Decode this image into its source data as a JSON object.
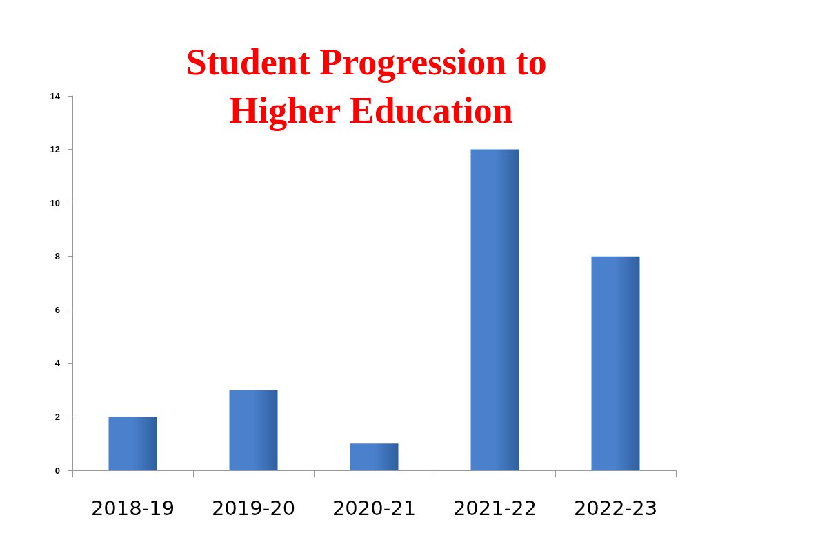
{
  "chart_data": {
    "type": "bar",
    "title": "Student Progression to Higher Education",
    "categories": [
      "2018-19",
      "2019-20",
      "2020-21",
      "2021-22",
      "2022-23"
    ],
    "values": [
      2,
      3,
      1,
      12,
      8
    ],
    "color": "#4a80cc",
    "ylim": [
      0,
      14
    ],
    "yticks": [
      0,
      2,
      4,
      6,
      8,
      10,
      12,
      14
    ],
    "grid": false
  }
}
